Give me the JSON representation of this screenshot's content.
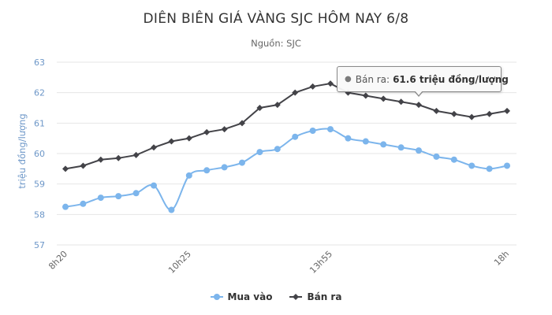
{
  "header": {
    "title": "DIÊN BIÊN GIÁ VÀNG SJC HÔM NAY 6/8",
    "subtitle": "Nguồn: SJC"
  },
  "tooltip": {
    "series_label": "Bán ra:",
    "value_text": "61.6 triệu đồng/lượng",
    "point_index": 20
  },
  "legend": {
    "items": [
      {
        "label": "Mua vào",
        "color": "#7cb5ec"
      },
      {
        "label": "Bán ra",
        "color": "#434348"
      }
    ]
  },
  "chart_data": {
    "type": "line",
    "title": "DIÊN BIÊN GIÁ VÀNG SJC HÔM NAY 6/8",
    "subtitle": "Nguồn: SJC",
    "xlabel": "",
    "ylabel": "triệu đồng/lượng",
    "ylim": [
      57,
      63
    ],
    "yticks": [
      57,
      58,
      59,
      60,
      61,
      62,
      63
    ],
    "grid": true,
    "legend_position": "bottom",
    "x_tick_labels": [
      {
        "index": 0,
        "label": "8h20"
      },
      {
        "index": 7,
        "label": "10h25"
      },
      {
        "index": 15,
        "label": "13h55"
      },
      {
        "index": 25,
        "label": "18h"
      }
    ],
    "point_count": 26,
    "series": [
      {
        "name": "Mua vào",
        "color": "#7cb5ec",
        "marker": "circle",
        "smooth": true,
        "values": [
          58.25,
          58.35,
          58.55,
          58.6,
          58.7,
          58.95,
          58.15,
          59.28,
          59.45,
          59.55,
          59.7,
          60.05,
          60.15,
          60.55,
          60.75,
          60.8,
          60.5,
          60.4,
          60.3,
          60.2,
          60.1,
          59.9,
          59.8,
          59.6,
          59.5,
          59.6
        ]
      },
      {
        "name": "Bán ra",
        "color": "#434348",
        "marker": "diamond",
        "smooth": false,
        "values": [
          59.5,
          59.6,
          59.8,
          59.85,
          59.95,
          60.2,
          60.4,
          60.5,
          60.7,
          60.8,
          61.0,
          61.5,
          61.6,
          62.0,
          62.2,
          62.3,
          62.0,
          61.9,
          61.8,
          61.7,
          61.6,
          61.4,
          61.3,
          61.2,
          61.3,
          61.4
        ]
      }
    ]
  }
}
